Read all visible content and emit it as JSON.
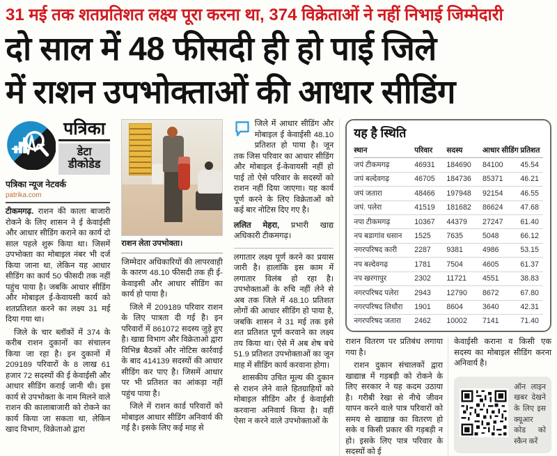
{
  "kicker": "31 मई तक शतप्रतिशत लक्ष्य पूरा करना था,  374 विक्रेताओं ने नहीं निभाई जिम्मेदारी",
  "headline": {
    "line1": "दो साल में 48 फीसदी ही हो पाई जिले",
    "line2": "में राशन उपभोक्ताओं की आधार सीडिंग"
  },
  "brand": {
    "masthead": "पत्रिका",
    "label": "डेटा\nडीकोडेड",
    "network": "पत्रिका न्यूज नेटवर्क",
    "site": "patrika.com",
    "logo_icon": "pulse-chart-magnifier-icon"
  },
  "photo": {
    "caption": "राशन लेता उपभोक्ता।"
  },
  "quote": {
    "icon": "speech-bubble-icon",
    "text": "जिले में आधार सीडिंग और मोबाइल ई केवाईसी 48.10 प्रतिशत हो पाया है। जून तक जिस परिवार का आधार  सीडिंग और मोबाइल ई-केवायसी नहीं हो पाई तो ऐसे परिवार के सदस्यों को राशन नहीं दिया जाएगा। यह कार्य पूर्ण करने के लिए विक्रेताओं को कई बार नोटिस दिए गए है।",
    "author": "ललित मेहरा,",
    "author_title": " प्रभारी खाद्य अधिकारी टीकमगढ़।"
  },
  "table": {
    "title": "यह है स्थिति",
    "headers": [
      "स्थान",
      "परिवार",
      "सदस्य",
      "आधार सीडिंग",
      "प्रतिशत"
    ],
    "rows": [
      [
        "जपं टीकमगढ़",
        "46931",
        "184690",
        "84100",
        "45.54"
      ],
      [
        "जपं बल्देवगढ़",
        "46705",
        "184736",
        "85371",
        "46.21"
      ],
      [
        "जपं जतारा",
        "48466",
        "197948",
        "92154",
        "46.55"
      ],
      [
        "जपं. पलेरा",
        "41519",
        "181682",
        "86624",
        "47.68"
      ],
      [
        "नपा टीकमगढ़",
        "10367",
        "44379",
        "27247",
        "61.40"
      ],
      [
        "नप बडागांव धसान",
        "1525",
        "7635",
        "5048",
        "66.12"
      ],
      [
        "नगरपरिषद कारी",
        "2287",
        "9381",
        "4986",
        "53.15"
      ],
      [
        "नप बल्देवगढ़",
        "1781",
        "7504",
        "4605",
        "61.37"
      ],
      [
        "नप खरगापुर",
        "2302",
        "11721",
        "4551",
        "38.83"
      ],
      [
        "नगरपरिषद पलेरा",
        "2943",
        "12790",
        "8672",
        "67.80"
      ],
      [
        "नगरपरिषद लिधौरा",
        "1901",
        "8604",
        "3640",
        "42.31"
      ],
      [
        "नगरपरिषद जतारा",
        "2462",
        "10002",
        "7141",
        "71.40"
      ]
    ]
  },
  "columns": {
    "col1": {
      "lead": "टीकमगढ़.",
      "p1": " राशन की काला बाजारी रोकने के लिए शासन ने ई केवाईसी और आधार सीडिंग कराने का कार्य दो साल पहले शुरू किया था। जिसमें उपभोक्ता का मोबाइल नंबर भी दर्ज किया जाना था, लेकिन यह आधार सीडिंग का कार्य 50 फीसदी तक नहीं पहुंच पाया है। जबकि आधार सीडिंग और मोबाइल ई-केवायसी कार्य को शतप्रतिशत करने का लक्ष्य 31 मई दिया गया था।",
      "p2": "जिले के चार ब्लॉकों में 374 के करीब राशन दुकानों का संचालन किया जा रहा है। इन दुकानों में 209189 परिवारों के 8 लाख 61 हजार 72 सदस्यों की ई केवाईसी और आधार सीडिंग कराई जानी थी। इस कार्य से उपभोक्ता के नाम मिलने वाले राशन की कालाबाजारी को रोकने का कार्य किया जा सकता था, लेकिन खाद विभाग, विक्रेताओ द्वारा"
    },
    "col2": {
      "p1": "जिम्मेदार अधिकारियों की लापरवाही के कारण 48.10 फीसदी तक ही ई-केवाइसी और आधार सीडिंग का कार्य हो पाया है।",
      "p2": "जिले में 209189 परिवार राशन के लिए पात्रता दी गई है। इन परिवारों में 861072 सदस्य जुड़े हुए है। खाद्य विभाग और विक्रेताओ द्वारा विभिन्न बैठकों और नोटिस कार्रवाई के बाद 414139 सदस्यों की आधार सीडिंग कर पाए है। जिसमें आधार पर भी प्रतिशत का आंकड़ा नहीं पहुंच पाया है।",
      "p3": "जिले में राशन कार्ड परिवारों को मोबाइल आधार सीडिंग अनिवार्य की गई है। इसके लिए कई माह से"
    },
    "col3": {
      "p1": "लगातार लक्ष्य पूर्ण करने का प्रयास जारी है। हालांकि इस काम में लगातार विलंब हो रहा है। उपभोक्ताओं के रुचि नहीं लेने से अब तक जिले में 48.10 प्रतिशत लोगों की आधार सीडिंग हो पाया है, जबकि शासन ने 31 मई तक इसे शत प्रतिशत पूर्ण करवाने का लक्ष्य तय किया था। ऐसे में अब शेष बचे 51.9 प्रतिशत उपभोक्ताओं का जून माह में सीडिंग कार्य करवाना होगा।",
      "p2": "शासकीय उचित मूल्य की दुकान से राशन लेने वाले हितग्राहियों को मोबाइल सीडिंग और ई केवाईसी करवाना अनिवार्य किया है। वहीं ऐसा न करने वाले उपभोक्ताओं के"
    },
    "col4": {
      "p1": "राशन वितरण पर प्रतिबंध लगाया गया है।",
      "p2": "राशन दुकान संचालकों द्वारा खाद्यान्न में गड़बड़ी को रोकने के लिए सरकार ने यह कदम उठाया है। गरीबी रेखा से नीचे जीवन यापन करने वाले पात्र परिवारों को समय से खाद्यान्न का वितरण हो सके व किसी प्रकार की गड़बड़ी न हो। इसके लिए पात्र परिवार के सदस्यों को ई"
    },
    "col5": {
      "p1": "केवाईसी कराना व किसी एक सदस्य का मोबाइल सीडिंग करना अनिवार्य है।"
    }
  },
  "qr": {
    "icon": "qr-code",
    "label": "ऑन लाइन खबर देखने के लिए इस क्यूआर कोड को स्कैन करें"
  },
  "colors": {
    "accent_red": "#d11a20",
    "quote_blue": "#35a3dc",
    "logo_blue": "#1d8ec8",
    "site_orange": "#bd7036"
  }
}
